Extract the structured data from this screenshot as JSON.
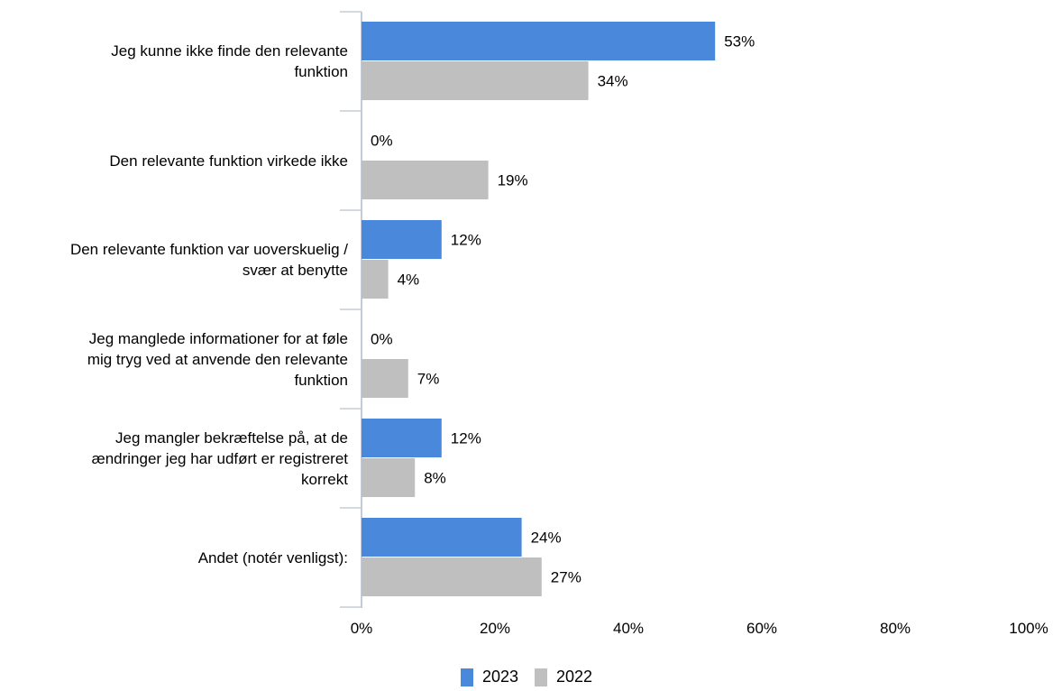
{
  "chart_data": {
    "type": "bar",
    "orientation": "horizontal",
    "categories": [
      "Jeg kunne ikke finde den relevante\nfunktion",
      "Den relevante funktion virkede ikke",
      "Den relevante funktion var uoverskuelig /\nsvær at benytte",
      "Jeg manglede informationer for at føle\nmig tryg ved at anvende den relevante\nfunktion",
      "Jeg mangler bekræftelse på, at de\nændringer jeg har udført er registreret\nkorrekt",
      "Andet (notér venligst):"
    ],
    "series": [
      {
        "name": "2023",
        "values": [
          53,
          0,
          12,
          0,
          12,
          24
        ],
        "color": "#4a88dc"
      },
      {
        "name": "2022",
        "values": [
          34,
          19,
          4,
          7,
          8,
          27
        ],
        "color": "#bfbfbf"
      }
    ],
    "value_suffix": "%",
    "xlim": [
      0,
      100
    ],
    "x_ticks": [
      "0%",
      "20%",
      "40%",
      "60%",
      "80%",
      "100%"
    ],
    "x_tick_values": [
      0,
      20,
      40,
      60,
      80,
      100
    ],
    "grid": false,
    "legend_position": "bottom-center",
    "title": "",
    "xlabel": "",
    "ylabel": ""
  }
}
